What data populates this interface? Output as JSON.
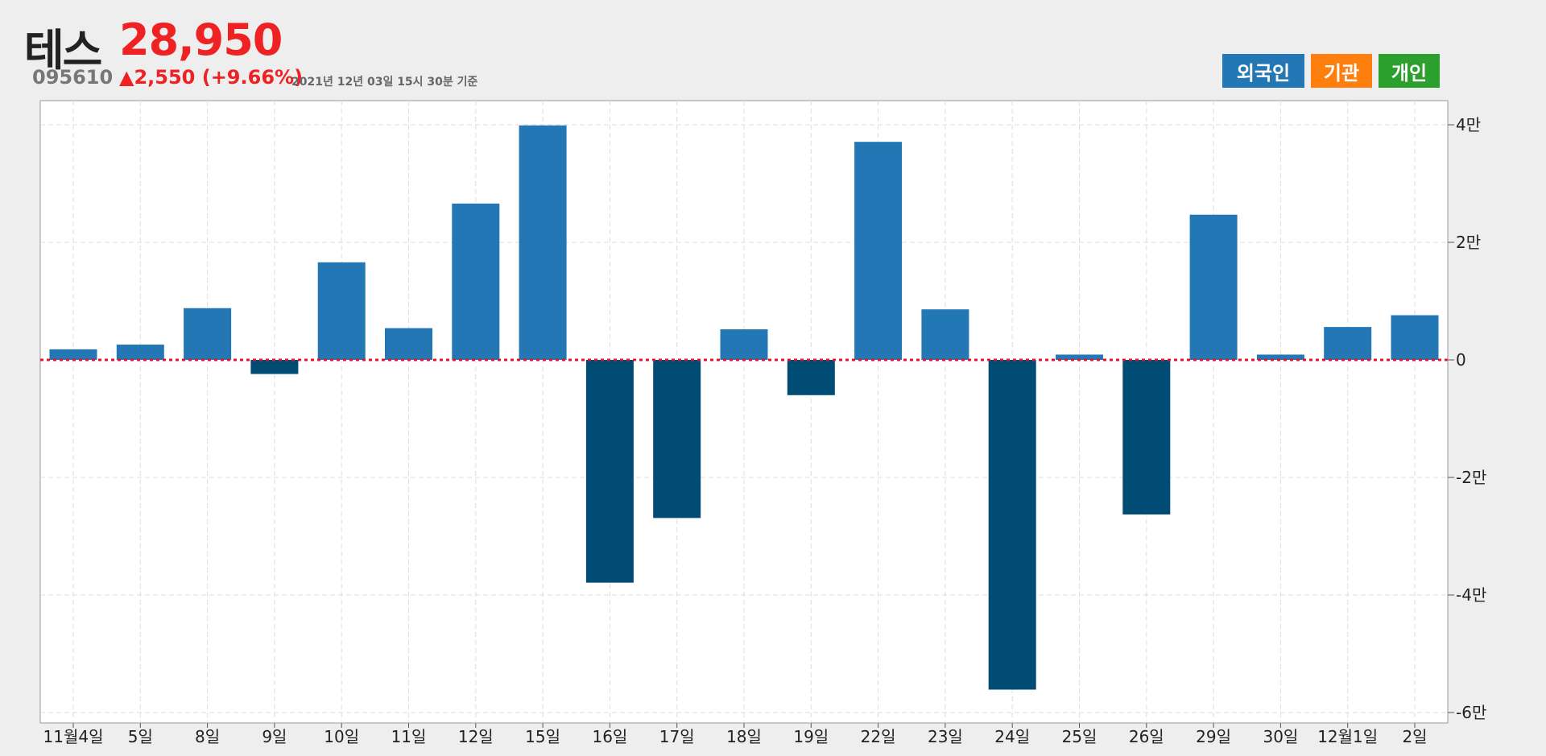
{
  "header": {
    "stock_name": "테스",
    "stock_price": "28,950",
    "stock_code": "095610",
    "stock_change": "▲2,550 (+9.66%)",
    "timestamp": "2021년 12년 03일 15시 30분 기준"
  },
  "legend": [
    {
      "label": "외국인",
      "color": "#2377b4"
    },
    {
      "label": "기관",
      "color": "#ff7f0e"
    },
    {
      "label": "개인",
      "color": "#2ca02c"
    }
  ],
  "colors": {
    "positive_bar": "#2377b4",
    "negative_bar": "#004c75",
    "zero_line": "#e8122a",
    "grid": "#dddddd"
  },
  "chart_data": {
    "type": "bar",
    "series": [
      {
        "name": "외국인",
        "values": [
          1800,
          2600,
          8800,
          -2400,
          16600,
          5400,
          26600,
          39900,
          -37900,
          -26900,
          5200,
          -6000,
          37100,
          8600,
          -56100,
          900,
          -26300,
          24700,
          900,
          5600,
          7600
        ]
      }
    ],
    "categories": [
      "11월4일",
      "5일",
      "8일",
      "9일",
      "10일",
      "11일",
      "12일",
      "15일",
      "16일",
      "17일",
      "18일",
      "19일",
      "22일",
      "23일",
      "24일",
      "25일",
      "26일",
      "29일",
      "30일",
      "12월1일",
      "2일"
    ],
    "y_ticks": [
      40000,
      20000,
      0,
      -20000,
      -40000,
      -60000
    ],
    "y_tick_labels": [
      "4만",
      "2만",
      "0",
      "-2만",
      "-4만",
      "-6만"
    ],
    "ylim": [
      -61000,
      44000
    ],
    "grid": true,
    "zero_line": "dotted"
  }
}
